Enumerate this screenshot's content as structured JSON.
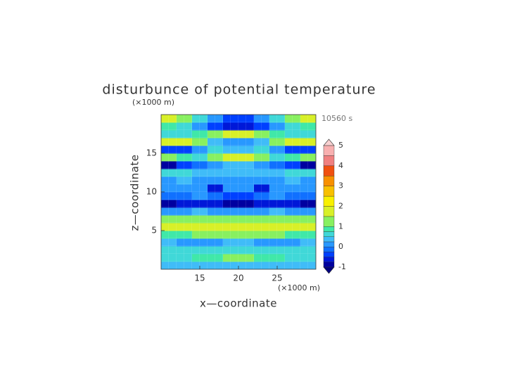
{
  "chart_data": {
    "type": "contour",
    "title": "disturbunce of potential temperature",
    "x_label": "x—coordinate",
    "y_label": "z—coordinate",
    "x_unit": "(×1000 m)",
    "y_unit": "(×1000 m)",
    "time_label": "10560 s",
    "xlim": [
      10,
      30
    ],
    "ylim": [
      0,
      20
    ],
    "xticks": [
      15,
      20,
      25
    ],
    "yticks": [
      5,
      10,
      15
    ],
    "x": [
      11,
      13,
      15,
      17,
      19,
      21,
      23,
      25,
      27,
      29
    ],
    "y": [
      0.5,
      1.5,
      2.5,
      3.5,
      4.5,
      5.5,
      6.5,
      7.5,
      8.5,
      9.5,
      10.5,
      11.5,
      12.5,
      13.5,
      14.5,
      15.5,
      16.5,
      17.5,
      18.5,
      19.5
    ],
    "z": [
      [
        0.3,
        0.3,
        0.4,
        0.4,
        0.4,
        0.4,
        0.4,
        0.4,
        0.3,
        0.3
      ],
      [
        0.6,
        0.7,
        0.9,
        0.9,
        1.1,
        1.1,
        0.9,
        0.9,
        0.7,
        0.6
      ],
      [
        0.5,
        0.5,
        0.6,
        0.5,
        0.6,
        0.6,
        0.5,
        0.6,
        0.5,
        0.5
      ],
      [
        0.3,
        0.1,
        0.0,
        0.2,
        0.3,
        0.3,
        0.2,
        0.0,
        0.1,
        0.3
      ],
      [
        0.9,
        0.9,
        1.0,
        1.1,
        1.2,
        1.2,
        1.1,
        1.0,
        0.9,
        0.9
      ],
      [
        1.5,
        1.6,
        1.7,
        1.8,
        1.9,
        1.9,
        1.8,
        1.7,
        1.6,
        1.5
      ],
      [
        1.2,
        1.1,
        1.0,
        1.2,
        1.2,
        1.2,
        1.2,
        1.0,
        1.1,
        1.2
      ],
      [
        0.2,
        0.2,
        0.3,
        0.2,
        0.2,
        0.2,
        0.2,
        0.3,
        0.2,
        0.2
      ],
      [
        -0.8,
        -0.7,
        -0.6,
        -0.7,
        -0.8,
        -0.8,
        -0.7,
        -0.6,
        -0.7,
        -0.8
      ],
      [
        -0.2,
        -0.1,
        0.0,
        -0.2,
        -0.3,
        -0.3,
        -0.2,
        0.0,
        -0.1,
        -0.2
      ],
      [
        0.1,
        0.1,
        0.0,
        -0.6,
        0.1,
        0.1,
        -0.6,
        0.0,
        0.1,
        0.1
      ],
      [
        0.2,
        0.3,
        0.2,
        0.1,
        0.0,
        0.0,
        0.1,
        0.2,
        0.3,
        0.2
      ],
      [
        0.5,
        0.6,
        0.4,
        0.3,
        0.3,
        0.3,
        0.3,
        0.4,
        0.6,
        0.5
      ],
      [
        -0.8,
        -0.5,
        -0.2,
        0.2,
        0.4,
        0.4,
        0.2,
        -0.2,
        -0.5,
        -0.8
      ],
      [
        1.0,
        0.8,
        0.6,
        1.2,
        1.8,
        1.8,
        1.2,
        0.6,
        0.8,
        1.0
      ],
      [
        -0.5,
        -0.3,
        0.0,
        0.5,
        0.4,
        0.4,
        0.5,
        0.0,
        -0.3,
        -0.5
      ],
      [
        1.8,
        1.7,
        1.2,
        0.4,
        0.2,
        0.2,
        0.4,
        1.2,
        1.7,
        1.8
      ],
      [
        0.5,
        0.6,
        0.9,
        1.3,
        1.6,
        1.6,
        1.3,
        0.9,
        0.6,
        0.5
      ],
      [
        0.8,
        0.6,
        0.2,
        -0.3,
        -0.7,
        -0.7,
        -0.3,
        0.2,
        0.6,
        0.8
      ],
      [
        1.5,
        1.0,
        0.5,
        0.2,
        -0.5,
        -0.5,
        0.2,
        0.5,
        1.0,
        1.5
      ]
    ],
    "levels": [
      -1,
      -0.75,
      -0.5,
      -0.25,
      0,
      0.25,
      0.5,
      0.75,
      1,
      1.5,
      2,
      2.5,
      3,
      3.5,
      4,
      4.5,
      5
    ],
    "colors": [
      "#0000a0",
      "#0018d8",
      "#0040ff",
      "#1070ff",
      "#2898ff",
      "#40bcf8",
      "#40d8d8",
      "#40e8a8",
      "#88f060",
      "#d8f028",
      "#f8f000",
      "#f8c000",
      "#f89000",
      "#f05010",
      "#f08080",
      "#f8b0b0"
    ],
    "under_color": "#000080",
    "over_color": "#f8d0d0",
    "cbar_ticks": [
      -1,
      0,
      1,
      2,
      3,
      4,
      5
    ]
  }
}
